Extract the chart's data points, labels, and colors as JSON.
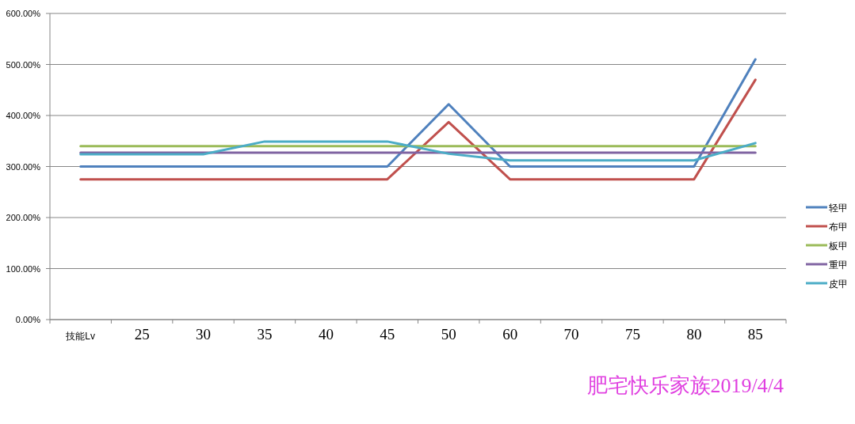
{
  "chart_data": {
    "type": "line",
    "categories": [
      "技能Lv",
      "25",
      "30",
      "35",
      "40",
      "45",
      "50",
      "60",
      "70",
      "75",
      "80",
      "85"
    ],
    "series": [
      {
        "name": "轻甲",
        "color": "#4f81bd",
        "values": [
          300,
          300,
          300,
          300,
          300,
          300,
          422,
          300,
          300,
          300,
          300,
          510
        ]
      },
      {
        "name": "布甲",
        "color": "#c0504d",
        "values": [
          275,
          275,
          275,
          275,
          275,
          275,
          387,
          275,
          275,
          275,
          275,
          470
        ]
      },
      {
        "name": "板甲",
        "color": "#9bbb59",
        "values": [
          340,
          340,
          340,
          340,
          340,
          340,
          340,
          340,
          340,
          340,
          340,
          340
        ]
      },
      {
        "name": "重甲",
        "color": "#8064a2",
        "values": [
          327,
          327,
          327,
          327,
          327,
          327,
          327,
          327,
          327,
          327,
          327,
          327
        ]
      },
      {
        "name": "皮甲",
        "color": "#4bacc6",
        "values": [
          324,
          324,
          324,
          349,
          349,
          349,
          325,
          312,
          312,
          312,
          312,
          346
        ]
      }
    ],
    "ylim": [
      0,
      600
    ],
    "yticks": [
      {
        "value": 0,
        "label": "0.00%"
      },
      {
        "value": 100,
        "label": "100.00%"
      },
      {
        "value": 200,
        "label": "200.00%"
      },
      {
        "value": 300,
        "label": "300.00%"
      },
      {
        "value": 400,
        "label": "400.00%"
      },
      {
        "value": 500,
        "label": "500.00%"
      },
      {
        "value": 600,
        "label": "600.00%"
      }
    ],
    "grid": "y",
    "legend": "right",
    "annotations": [
      "肥宅快乐家族2019/4/4"
    ]
  }
}
